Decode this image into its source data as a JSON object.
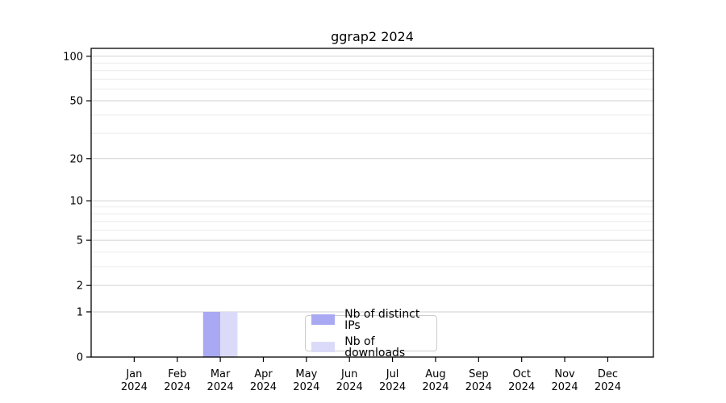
{
  "chart_data": {
    "type": "bar",
    "title": "ggrap2 2024",
    "categories": [
      "Jan 2024",
      "Feb 2024",
      "Mar 2024",
      "Apr 2024",
      "May 2024",
      "Jun 2024",
      "Jul 2024",
      "Aug 2024",
      "Sep 2024",
      "Oct 2024",
      "Nov 2024",
      "Dec 2024"
    ],
    "series": [
      {
        "name": "Nb of distinct IPs",
        "color": "#a9a9f3",
        "values": [
          0,
          0,
          1,
          0,
          0,
          0,
          0,
          0,
          0,
          0,
          0,
          0
        ]
      },
      {
        "name": "Nb of downloads",
        "color": "#dbdbf9",
        "values": [
          0,
          0,
          1,
          0,
          0,
          0,
          0,
          0,
          0,
          0,
          0,
          0
        ]
      }
    ],
    "xlabel": "",
    "ylabel": "",
    "yscale": "log1p",
    "ylim": [
      0,
      113
    ],
    "y_ticks": [
      0,
      1,
      2,
      5,
      10,
      20,
      50,
      100
    ],
    "y_minor_ticks": [
      3,
      4,
      6,
      7,
      8,
      9,
      30,
      40,
      60,
      70,
      80,
      90
    ],
    "grid": "horizontal",
    "legend_position": "lower center"
  }
}
